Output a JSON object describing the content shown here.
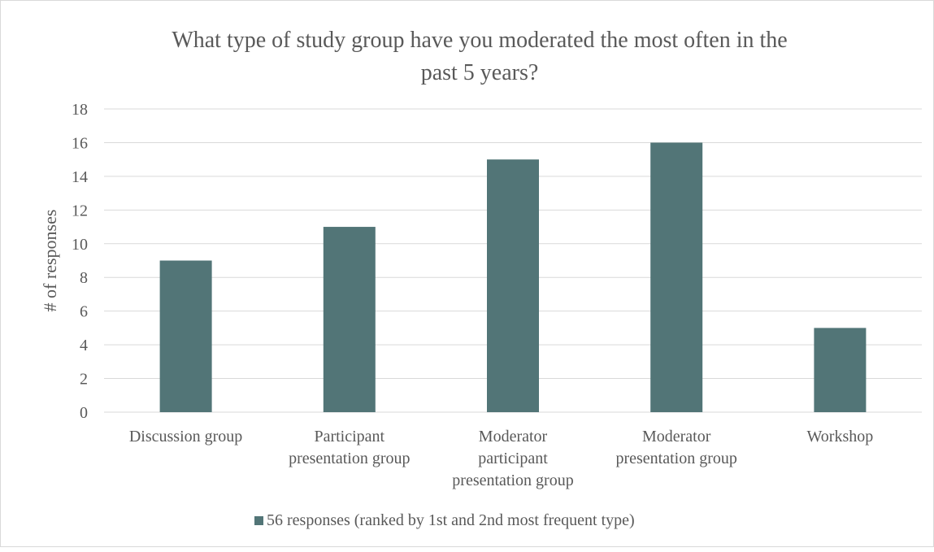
{
  "chart_data": {
    "type": "bar",
    "title": "What type of study group have you moderated the most often in the past 5 years?",
    "title_lines": [
      "What type of study group have you moderated the most often in the",
      "past 5 years?"
    ],
    "ylabel": "# of responses",
    "xlabel": "",
    "categories": [
      "Discussion group",
      "Participant presentation group",
      "Moderator participant presentation group",
      "Moderator presentation group",
      "Workshop"
    ],
    "category_lines": [
      [
        "Discussion group"
      ],
      [
        "Participant",
        "presentation group"
      ],
      [
        "Moderator",
        "participant",
        "presentation group"
      ],
      [
        "Moderator",
        "presentation group"
      ],
      [
        "Workshop"
      ]
    ],
    "series": [
      {
        "name": "56 responses (ranked by 1st and 2nd most frequent type)",
        "values": [
          9,
          11,
          15,
          16,
          5
        ],
        "color": "#527577"
      }
    ],
    "ylim": [
      0,
      18
    ],
    "yticks": [
      0,
      2,
      4,
      6,
      8,
      10,
      12,
      14,
      16,
      18
    ],
    "grid": true,
    "legend_position": "bottom"
  },
  "colors": {
    "bar": "#527577",
    "grid": "#d9d9d9",
    "text": "#595959",
    "title": "#595959"
  }
}
